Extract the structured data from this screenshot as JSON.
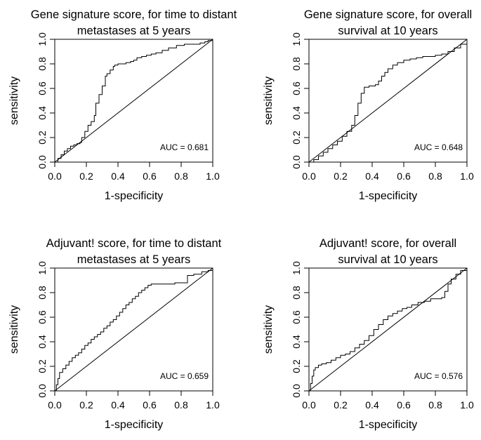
{
  "chart_data": [
    {
      "type": "line",
      "title_lines": [
        "Gene signature score, for time to distant",
        "metastases at 5 years"
      ],
      "xlabel": "1-specificity",
      "ylabel": "sensitivity",
      "xlim": [
        0,
        1
      ],
      "ylim": [
        0,
        1
      ],
      "xticks": [
        "0.0",
        "0.2",
        "0.4",
        "0.6",
        "0.8",
        "1.0"
      ],
      "yticks": [
        "0.0",
        "0.2",
        "0.4",
        "0.6",
        "0.8",
        "1.0"
      ],
      "annotation": "AUC =  0.681",
      "grid": false,
      "series": [
        {
          "x": [
            0.0,
            0.02,
            0.04,
            0.06,
            0.08,
            0.1,
            0.12,
            0.14,
            0.16,
            0.17,
            0.19,
            0.21,
            0.23,
            0.25,
            0.26,
            0.28,
            0.3,
            0.32,
            0.33,
            0.35,
            0.37,
            0.38,
            0.4,
            0.42,
            0.45,
            0.48,
            0.5,
            0.52,
            0.55,
            0.58,
            0.61,
            0.64,
            0.68,
            0.72,
            0.77,
            0.82,
            0.87,
            0.9,
            0.92,
            0.95,
            0.97,
            1.0
          ],
          "y": [
            0.0,
            0.03,
            0.06,
            0.09,
            0.11,
            0.13,
            0.14,
            0.15,
            0.16,
            0.2,
            0.25,
            0.3,
            0.33,
            0.38,
            0.48,
            0.55,
            0.62,
            0.7,
            0.72,
            0.75,
            0.78,
            0.79,
            0.8,
            0.8,
            0.81,
            0.82,
            0.83,
            0.85,
            0.86,
            0.87,
            0.88,
            0.89,
            0.91,
            0.93,
            0.95,
            0.96,
            0.96,
            0.96,
            0.97,
            0.98,
            0.99,
            1.0
          ]
        }
      ],
      "reference_line": [
        [
          0,
          0
        ],
        [
          1,
          1
        ]
      ]
    },
    {
      "type": "line",
      "title_lines": [
        "Gene signature score, for overall",
        "survival at 10 years"
      ],
      "xlabel": "1-specificity",
      "ylabel": "sensitivity",
      "xlim": [
        0,
        1
      ],
      "ylim": [
        0,
        1
      ],
      "xticks": [
        "0.0",
        "0.2",
        "0.4",
        "0.6",
        "0.8",
        "1.0"
      ],
      "yticks": [
        "0.0",
        "0.2",
        "0.4",
        "0.6",
        "0.8",
        "1.0"
      ],
      "annotation": "AUC =  0.648",
      "grid": false,
      "series": [
        {
          "x": [
            0.0,
            0.03,
            0.06,
            0.09,
            0.12,
            0.15,
            0.18,
            0.21,
            0.24,
            0.27,
            0.29,
            0.31,
            0.33,
            0.35,
            0.38,
            0.4,
            0.42,
            0.44,
            0.46,
            0.48,
            0.5,
            0.53,
            0.56,
            0.6,
            0.64,
            0.68,
            0.72,
            0.76,
            0.8,
            0.84,
            0.88,
            0.92,
            0.96,
            1.0
          ],
          "y": [
            0.0,
            0.02,
            0.05,
            0.08,
            0.11,
            0.14,
            0.17,
            0.21,
            0.25,
            0.3,
            0.38,
            0.48,
            0.56,
            0.61,
            0.62,
            0.62,
            0.63,
            0.66,
            0.7,
            0.73,
            0.76,
            0.79,
            0.81,
            0.83,
            0.84,
            0.85,
            0.86,
            0.86,
            0.87,
            0.88,
            0.9,
            0.93,
            0.96,
            1.0
          ]
        }
      ],
      "reference_line": [
        [
          0,
          0
        ],
        [
          1,
          1
        ]
      ]
    },
    {
      "type": "line",
      "title_lines": [
        "Adjuvant! score, for time to distant",
        "metastases at 5 years"
      ],
      "xlabel": "1-specificity",
      "ylabel": "sensitivity",
      "xlim": [
        0,
        1
      ],
      "ylim": [
        0,
        1
      ],
      "xticks": [
        "0.0",
        "0.2",
        "0.4",
        "0.6",
        "0.8",
        "1.0"
      ],
      "yticks": [
        "0.0",
        "0.2",
        "0.4",
        "0.6",
        "0.8",
        "1.0"
      ],
      "annotation": "AUC =  0.659",
      "grid": false,
      "series": [
        {
          "x": [
            0.0,
            0.01,
            0.02,
            0.03,
            0.05,
            0.07,
            0.09,
            0.11,
            0.13,
            0.15,
            0.17,
            0.19,
            0.21,
            0.23,
            0.25,
            0.27,
            0.29,
            0.31,
            0.33,
            0.35,
            0.37,
            0.39,
            0.41,
            0.43,
            0.45,
            0.47,
            0.49,
            0.51,
            0.53,
            0.55,
            0.57,
            0.59,
            0.61,
            0.65,
            0.7,
            0.76,
            0.82,
            0.84,
            0.88,
            0.93,
            0.97,
            1.0
          ],
          "y": [
            0.0,
            0.05,
            0.1,
            0.15,
            0.18,
            0.21,
            0.24,
            0.27,
            0.29,
            0.31,
            0.34,
            0.37,
            0.39,
            0.42,
            0.44,
            0.46,
            0.48,
            0.51,
            0.53,
            0.56,
            0.58,
            0.61,
            0.64,
            0.67,
            0.7,
            0.72,
            0.75,
            0.77,
            0.8,
            0.82,
            0.84,
            0.86,
            0.87,
            0.87,
            0.87,
            0.88,
            0.88,
            0.94,
            0.95,
            0.97,
            0.98,
            1.0
          ]
        }
      ],
      "reference_line": [
        [
          0,
          0
        ],
        [
          1,
          1
        ]
      ]
    },
    {
      "type": "line",
      "title_lines": [
        "Adjuvant! score, for overall",
        "survival at 10 years"
      ],
      "xlabel": "1-specificity",
      "ylabel": "sensitivity",
      "xlim": [
        0,
        1
      ],
      "ylim": [
        0,
        1
      ],
      "xticks": [
        "0.0",
        "0.2",
        "0.4",
        "0.6",
        "0.8",
        "1.0"
      ],
      "yticks": [
        "0.0",
        "0.2",
        "0.4",
        "0.6",
        "0.8",
        "1.0"
      ],
      "annotation": "AUC =  0.576",
      "grid": false,
      "series": [
        {
          "x": [
            0.0,
            0.01,
            0.02,
            0.03,
            0.04,
            0.06,
            0.08,
            0.11,
            0.14,
            0.17,
            0.2,
            0.23,
            0.26,
            0.29,
            0.32,
            0.35,
            0.38,
            0.41,
            0.44,
            0.47,
            0.5,
            0.53,
            0.56,
            0.59,
            0.62,
            0.65,
            0.69,
            0.73,
            0.77,
            0.81,
            0.84,
            0.86,
            0.88,
            0.9,
            0.93,
            0.96,
            1.0
          ],
          "y": [
            0.0,
            0.06,
            0.12,
            0.17,
            0.19,
            0.21,
            0.22,
            0.23,
            0.25,
            0.27,
            0.29,
            0.3,
            0.32,
            0.35,
            0.38,
            0.41,
            0.45,
            0.5,
            0.54,
            0.58,
            0.61,
            0.63,
            0.65,
            0.67,
            0.68,
            0.7,
            0.72,
            0.73,
            0.75,
            0.75,
            0.76,
            0.81,
            0.87,
            0.91,
            0.95,
            0.98,
            1.0
          ]
        }
      ],
      "reference_line": [
        [
          0,
          0
        ],
        [
          1,
          1
        ]
      ]
    }
  ]
}
